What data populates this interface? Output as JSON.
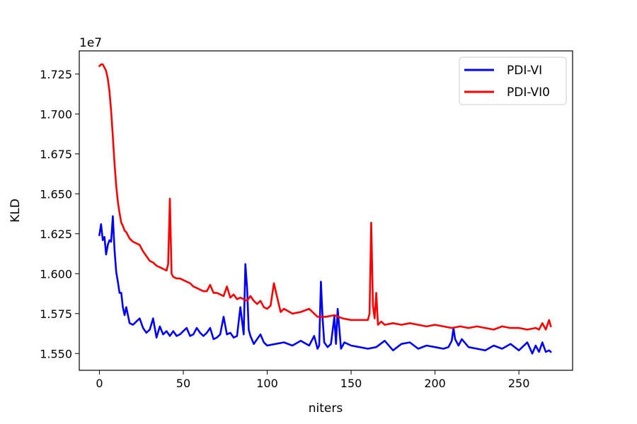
{
  "chart_data": {
    "type": "line",
    "title": "",
    "xlabel": "niters",
    "ylabel": "KLD",
    "y_offset_label": "1e7",
    "y_multiplier": 10000000,
    "xlim": [
      -12,
      282
    ],
    "ylim": [
      1.5395,
      1.7395
    ],
    "xticks": [
      0,
      50,
      100,
      150,
      200,
      250
    ],
    "xtick_labels": [
      "0",
      "50",
      "100",
      "150",
      "200",
      "250"
    ],
    "yticks": [
      1.55,
      1.575,
      1.6,
      1.625,
      1.65,
      1.675,
      1.7,
      1.725
    ],
    "ytick_labels": [
      "1.550",
      "1.575",
      "1.600",
      "1.625",
      "1.650",
      "1.675",
      "1.700",
      "1.725"
    ],
    "grid": false,
    "legend_position": "upper right",
    "series": [
      {
        "name": "PDI-VI",
        "color": "#0000ff",
        "x": [
          0,
          1,
          2,
          3,
          4,
          5,
          6,
          7,
          8,
          9,
          10,
          11,
          12,
          13,
          14,
          15,
          16,
          18,
          20,
          22,
          24,
          26,
          28,
          30,
          32,
          34,
          36,
          38,
          40,
          42,
          44,
          46,
          48,
          50,
          52,
          54,
          56,
          58,
          60,
          62,
          64,
          66,
          68,
          70,
          72,
          74,
          76,
          78,
          80,
          82,
          84,
          86,
          87,
          88,
          89,
          90,
          92,
          94,
          96,
          98,
          100,
          105,
          110,
          115,
          120,
          125,
          128,
          130,
          131,
          132,
          133,
          134,
          136,
          138,
          140,
          141,
          142,
          144,
          146,
          150,
          155,
          160,
          165,
          170,
          175,
          180,
          185,
          190,
          195,
          200,
          205,
          208,
          210,
          211,
          212,
          214,
          216,
          220,
          225,
          230,
          235,
          240,
          245,
          250,
          255,
          258,
          260,
          262,
          264,
          266,
          268,
          269
        ],
        "values": [
          1.624,
          1.631,
          1.621,
          1.623,
          1.612,
          1.618,
          1.621,
          1.62,
          1.636,
          1.615,
          1.601,
          1.595,
          1.588,
          1.588,
          1.579,
          1.574,
          1.579,
          1.569,
          1.568,
          1.57,
          1.572,
          1.566,
          1.563,
          1.565,
          1.572,
          1.56,
          1.567,
          1.562,
          1.564,
          1.561,
          1.564,
          1.561,
          1.562,
          1.564,
          1.566,
          1.561,
          1.562,
          1.566,
          1.563,
          1.561,
          1.563,
          1.566,
          1.559,
          1.56,
          1.562,
          1.573,
          1.562,
          1.563,
          1.56,
          1.561,
          1.579,
          1.562,
          1.606,
          1.591,
          1.565,
          1.561,
          1.556,
          1.559,
          1.562,
          1.557,
          1.555,
          1.556,
          1.557,
          1.555,
          1.558,
          1.555,
          1.561,
          1.553,
          1.555,
          1.595,
          1.572,
          1.557,
          1.554,
          1.556,
          1.573,
          1.556,
          1.578,
          1.553,
          1.557,
          1.555,
          1.554,
          1.553,
          1.554,
          1.558,
          1.552,
          1.556,
          1.557,
          1.553,
          1.555,
          1.554,
          1.553,
          1.554,
          1.558,
          1.566,
          1.559,
          1.555,
          1.559,
          1.554,
          1.553,
          1.552,
          1.555,
          1.553,
          1.556,
          1.552,
          1.557,
          1.55,
          1.555,
          1.551,
          1.557,
          1.551,
          1.552,
          1.551
        ]
      },
      {
        "name": "PDI-VI0",
        "color": "#ff0000",
        "x": [
          0,
          1,
          2,
          3,
          4,
          5,
          6,
          7,
          8,
          9,
          10,
          11,
          12,
          13,
          14,
          15,
          16,
          18,
          20,
          22,
          24,
          26,
          28,
          30,
          32,
          34,
          36,
          38,
          40,
          41,
          42,
          43,
          44,
          46,
          48,
          50,
          52,
          54,
          56,
          58,
          60,
          62,
          64,
          66,
          68,
          70,
          72,
          74,
          76,
          78,
          80,
          82,
          84,
          86,
          88,
          90,
          92,
          94,
          96,
          98,
          100,
          102,
          104,
          106,
          108,
          110,
          115,
          120,
          125,
          130,
          135,
          140,
          145,
          150,
          155,
          160,
          161,
          162,
          163,
          164,
          165,
          166,
          168,
          170,
          175,
          180,
          185,
          190,
          195,
          200,
          205,
          210,
          215,
          220,
          225,
          230,
          235,
          240,
          245,
          250,
          255,
          260,
          262,
          264,
          266,
          268,
          269
        ],
        "values": [
          1.73,
          1.731,
          1.731,
          1.729,
          1.727,
          1.722,
          1.714,
          1.702,
          1.686,
          1.669,
          1.655,
          1.645,
          1.638,
          1.632,
          1.63,
          1.627,
          1.626,
          1.622,
          1.62,
          1.619,
          1.618,
          1.614,
          1.611,
          1.608,
          1.607,
          1.605,
          1.604,
          1.603,
          1.602,
          1.606,
          1.647,
          1.6,
          1.598,
          1.597,
          1.597,
          1.596,
          1.595,
          1.594,
          1.592,
          1.591,
          1.59,
          1.589,
          1.589,
          1.593,
          1.588,
          1.588,
          1.587,
          1.586,
          1.592,
          1.585,
          1.587,
          1.584,
          1.585,
          1.584,
          1.583,
          1.586,
          1.583,
          1.581,
          1.583,
          1.579,
          1.578,
          1.58,
          1.594,
          1.585,
          1.576,
          1.578,
          1.575,
          1.576,
          1.578,
          1.573,
          1.573,
          1.574,
          1.572,
          1.571,
          1.571,
          1.571,
          1.575,
          1.632,
          1.58,
          1.572,
          1.588,
          1.568,
          1.57,
          1.568,
          1.569,
          1.568,
          1.569,
          1.568,
          1.567,
          1.568,
          1.567,
          1.566,
          1.567,
          1.566,
          1.567,
          1.566,
          1.565,
          1.567,
          1.566,
          1.566,
          1.565,
          1.566,
          1.565,
          1.569,
          1.565,
          1.571,
          1.567
        ]
      }
    ]
  }
}
